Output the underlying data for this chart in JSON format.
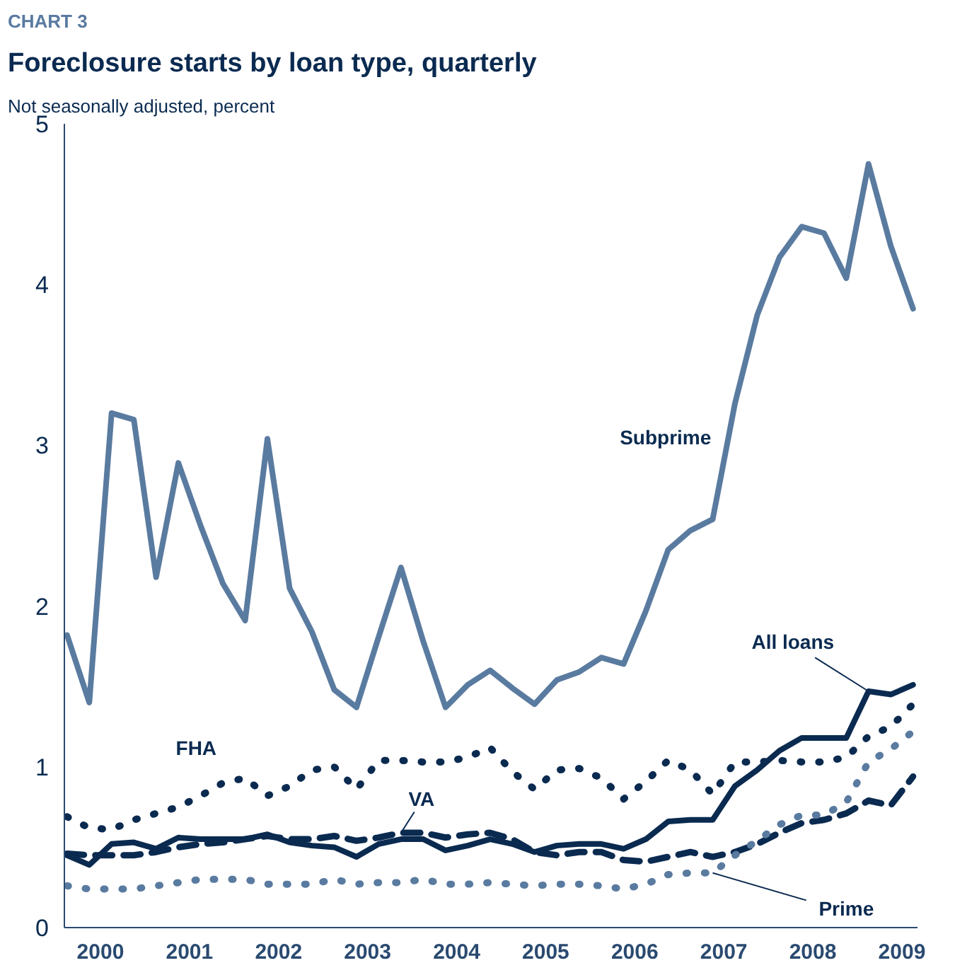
{
  "chart_data": {
    "type": "line",
    "title": "Foreclosure starts by loan type, quarterly",
    "subtitle": "CHART 3",
    "ylabel": "Not seasonally adjusted, percent",
    "x": [
      2000,
      2000.25,
      2000.5,
      2000.75,
      2001,
      2001.25,
      2001.5,
      2001.75,
      2002,
      2002.25,
      2002.5,
      2002.75,
      2003,
      2003.25,
      2003.5,
      2003.75,
      2004,
      2004.25,
      2004.5,
      2004.75,
      2005,
      2005.25,
      2005.5,
      2005.75,
      2006,
      2006.25,
      2006.5,
      2006.75,
      2007,
      2007.25,
      2007.5,
      2007.75,
      2008,
      2008.25,
      2008.5,
      2008.75,
      2009,
      2009.25,
      2009.5
    ],
    "xlim": [
      1999.97,
      2009.55
    ],
    "xticks": [
      {
        "value": 2000.375,
        "label": "2000"
      },
      {
        "value": 2001.375,
        "label": "2001"
      },
      {
        "value": 2002.375,
        "label": "2002"
      },
      {
        "value": 2003.375,
        "label": "2003"
      },
      {
        "value": 2004.375,
        "label": "2004"
      },
      {
        "value": 2005.375,
        "label": "2005"
      },
      {
        "value": 2006.375,
        "label": "2006"
      },
      {
        "value": 2007.375,
        "label": "2007"
      },
      {
        "value": 2008.375,
        "label": "2008"
      },
      {
        "value": 2009.375,
        "label": "2009"
      }
    ],
    "ylim": [
      0,
      5
    ],
    "yticks": [
      0,
      1,
      2,
      3,
      4,
      5
    ],
    "grid": false,
    "marker": "none",
    "series": [
      {
        "name": "Subprime",
        "color": "#5a7ba0",
        "line_style": "solid",
        "values": [
          1.82,
          1.4,
          3.2,
          3.16,
          2.18,
          2.89,
          2.5,
          2.14,
          1.91,
          3.04,
          2.11,
          1.84,
          1.48,
          1.37,
          1.81,
          2.24,
          1.78,
          1.37,
          1.51,
          1.6,
          1.49,
          1.39,
          1.54,
          1.59,
          1.68,
          1.64,
          1.97,
          2.35,
          2.47,
          2.54,
          3.26,
          3.81,
          4.17,
          4.36,
          4.32,
          4.04,
          4.75,
          4.24,
          3.85
        ]
      },
      {
        "name": "All loans",
        "color": "#0a2a50",
        "line_style": "solid",
        "values": [
          0.45,
          0.39,
          0.52,
          0.53,
          0.49,
          0.56,
          0.55,
          0.55,
          0.55,
          0.58,
          0.53,
          0.51,
          0.5,
          0.44,
          0.52,
          0.55,
          0.55,
          0.48,
          0.51,
          0.55,
          0.52,
          0.47,
          0.51,
          0.52,
          0.52,
          0.49,
          0.55,
          0.66,
          0.67,
          0.67,
          0.88,
          0.98,
          1.1,
          1.18,
          1.18,
          1.18,
          1.47,
          1.45,
          1.51
        ]
      },
      {
        "name": "FHA",
        "color": "#0a2a50",
        "line_style": "dotted",
        "values": [
          0.69,
          0.62,
          0.61,
          0.67,
          0.71,
          0.75,
          0.82,
          0.9,
          0.93,
          0.82,
          0.88,
          0.98,
          1.0,
          0.86,
          1.04,
          1.04,
          1.03,
          1.03,
          1.06,
          1.12,
          0.97,
          0.86,
          0.98,
          0.99,
          0.93,
          0.8,
          0.91,
          1.04,
          0.98,
          0.83,
          1.03,
          1.03,
          1.04,
          1.03,
          1.03,
          1.06,
          1.19,
          1.25,
          1.39
        ]
      },
      {
        "name": "VA",
        "color": "#0a2a50",
        "line_style": "dashed",
        "values": [
          0.46,
          0.45,
          0.45,
          0.45,
          0.47,
          0.5,
          0.52,
          0.53,
          0.55,
          0.57,
          0.55,
          0.55,
          0.57,
          0.54,
          0.56,
          0.59,
          0.59,
          0.56,
          0.58,
          0.59,
          0.55,
          0.47,
          0.45,
          0.47,
          0.47,
          0.42,
          0.41,
          0.44,
          0.47,
          0.44,
          0.47,
          0.52,
          0.59,
          0.65,
          0.67,
          0.71,
          0.79,
          0.76,
          0.94
        ]
      },
      {
        "name": "Prime",
        "color": "#5a7ba0",
        "line_style": "dotted",
        "values": [
          0.26,
          0.24,
          0.24,
          0.24,
          0.26,
          0.28,
          0.3,
          0.3,
          0.3,
          0.27,
          0.27,
          0.27,
          0.3,
          0.27,
          0.28,
          0.28,
          0.3,
          0.27,
          0.27,
          0.28,
          0.27,
          0.26,
          0.27,
          0.27,
          0.26,
          0.24,
          0.27,
          0.33,
          0.34,
          0.34,
          0.45,
          0.54,
          0.64,
          0.7,
          0.7,
          0.78,
          1.03,
          1.11,
          1.22
        ]
      }
    ]
  }
}
